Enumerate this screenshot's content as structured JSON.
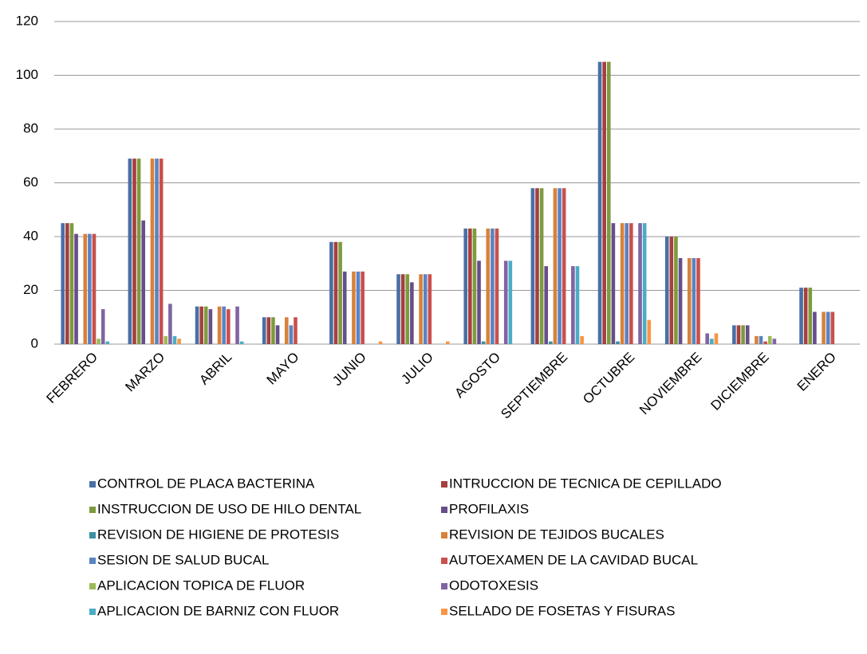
{
  "chart_data": {
    "type": "bar",
    "categories": [
      "FEBRERO",
      "MARZO",
      "ABRIL",
      "MAYO",
      "JUNIO",
      "JULIO",
      "AGOSTO",
      "SEPTIEMBRE",
      "OCTUBRE",
      "NOVIEMBRE",
      "DICIEMBRE",
      "ENERO"
    ],
    "series": [
      {
        "name": "CONTROL DE PLACA BACTERINA",
        "color": "#4A6FA5",
        "values": [
          45,
          69,
          14,
          10,
          38,
          26,
          43,
          58,
          105,
          40,
          7,
          21
        ]
      },
      {
        "name": "INTRUCCION DE TECNICA DE CEPILLADO",
        "color": "#A5403D",
        "values": [
          45,
          69,
          14,
          10,
          38,
          26,
          43,
          58,
          105,
          40,
          7,
          21
        ]
      },
      {
        "name": "INSTRUCCION DE USO DE HILO DENTAL",
        "color": "#7E9A3F",
        "values": [
          45,
          69,
          14,
          10,
          38,
          26,
          43,
          58,
          105,
          40,
          7,
          21
        ]
      },
      {
        "name": "PROFILAXIS",
        "color": "#674E8A",
        "values": [
          41,
          46,
          13,
          7,
          27,
          23,
          31,
          29,
          45,
          32,
          7,
          12
        ]
      },
      {
        "name": "REVISION DE HIGIENE DE PROTESIS",
        "color": "#3A8FA5",
        "values": [
          0,
          0,
          0,
          0,
          0,
          0,
          1,
          1,
          1,
          0,
          0,
          0
        ]
      },
      {
        "name": "REVISION DE TEJIDOS BUCALES",
        "color": "#D8813A",
        "values": [
          41,
          69,
          14,
          10,
          27,
          26,
          43,
          58,
          45,
          32,
          3,
          12
        ]
      },
      {
        "name": "SESION DE SALUD BUCAL",
        "color": "#5A83C4",
        "values": [
          41,
          69,
          14,
          7,
          27,
          26,
          43,
          58,
          45,
          32,
          3,
          12
        ]
      },
      {
        "name": "AUTOEXAMEN DE LA CAVIDAD BUCAL",
        "color": "#C9504D",
        "values": [
          41,
          69,
          13,
          10,
          27,
          26,
          43,
          58,
          45,
          32,
          1,
          12
        ]
      },
      {
        "name": "APLICACION TOPICA DE FLUOR",
        "color": "#9BBB59",
        "values": [
          2,
          3,
          0,
          0,
          0,
          0,
          0,
          0,
          0,
          0,
          3,
          0
        ]
      },
      {
        "name": "ODOTOXESIS",
        "color": "#8064A2",
        "values": [
          13,
          15,
          14,
          0,
          0,
          0,
          31,
          29,
          45,
          4,
          2,
          0
        ]
      },
      {
        "name": "APLICACION DE BARNIZ CON FLUOR",
        "color": "#4BACC6",
        "values": [
          1,
          3,
          1,
          0,
          0,
          0,
          31,
          29,
          45,
          2,
          0,
          0
        ]
      },
      {
        "name": "SELLADO DE FOSETAS Y FISURAS",
        "color": "#F79646",
        "values": [
          0,
          2,
          0,
          0,
          1,
          1,
          0,
          3,
          9,
          4,
          0,
          0
        ]
      }
    ],
    "ylim": [
      0,
      120
    ],
    "yticks": [
      0,
      20,
      40,
      60,
      80,
      100,
      120
    ],
    "grid": true,
    "legend": "bottom"
  }
}
